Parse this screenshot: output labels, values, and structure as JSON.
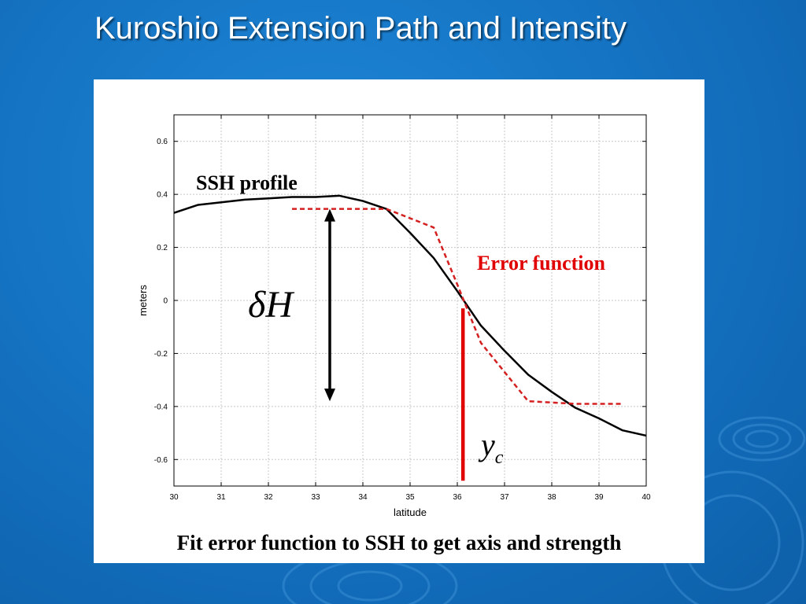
{
  "slide": {
    "title": "Kuroshio Extension Path and Intensity",
    "caption": "Fit error function to SSH to get axis and strength"
  },
  "colors": {
    "background": "#1574c4",
    "ssh_line": "#000000",
    "error_function": "#d42020",
    "yc_marker": "#e00000"
  },
  "chart_data": {
    "type": "line",
    "title": "",
    "xlabel": "latitude",
    "ylabel": "meters",
    "xlim": [
      30,
      40
    ],
    "ylim": [
      -0.7,
      0.7
    ],
    "x_ticks": [
      "30",
      "31",
      "32",
      "33",
      "34",
      "35",
      "36",
      "37",
      "38",
      "39",
      "40"
    ],
    "y_ticks": [
      "0.6",
      "0.4",
      "0.2",
      "0",
      "-0.2",
      "-0.4",
      "-0.6"
    ],
    "grid": true,
    "series": [
      {
        "name": "SSH profile",
        "style": "solid",
        "x": [
          30,
          30.5,
          31,
          31.5,
          32,
          32.5,
          33,
          33.5,
          34,
          34.5,
          35,
          35.5,
          36,
          36.5,
          37,
          37.5,
          38,
          38.5,
          39,
          39.5,
          40
        ],
        "y": [
          0.33,
          0.36,
          0.37,
          0.38,
          0.385,
          0.39,
          0.39,
          0.395,
          0.375,
          0.345,
          0.255,
          0.16,
          0.035,
          -0.095,
          -0.19,
          -0.28,
          -0.345,
          -0.405,
          -0.445,
          -0.49,
          -0.51
        ]
      },
      {
        "name": "Error function",
        "style": "dashed",
        "x": [
          32.5,
          33,
          33.5,
          34,
          34.5,
          35,
          35.5,
          36,
          36.5,
          37,
          37.5,
          38,
          38.5,
          39,
          39.5
        ],
        "y": [
          0.345,
          0.345,
          0.345,
          0.345,
          0.345,
          0.31,
          0.275,
          0.06,
          -0.16,
          -0.27,
          -0.38,
          -0.385,
          -0.39,
          -0.39,
          -0.39
        ]
      }
    ],
    "annotations": {
      "ssh_label": "SSH profile",
      "error_label": "Error function",
      "delta_h": {
        "symbol": "δ",
        "letter": "H",
        "from": 0.345,
        "to": -0.38,
        "x": 33.3
      },
      "yc": {
        "letter": "y",
        "sub": "c",
        "x": 36.12,
        "from": -0.03,
        "to": -0.68
      }
    }
  }
}
